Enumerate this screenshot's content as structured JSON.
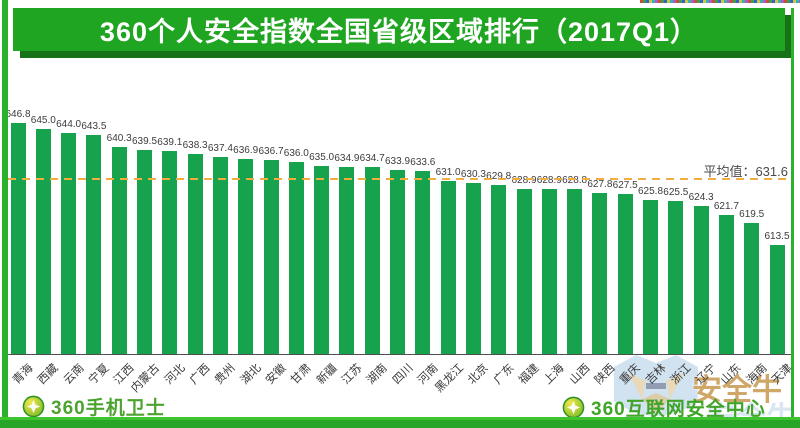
{
  "chart_data": {
    "type": "bar",
    "title": "360个人安全指数全国省级区域排行（2017Q1）",
    "categories": [
      "青海",
      "西藏",
      "云南",
      "宁夏",
      "江西",
      "内蒙古",
      "河北",
      "广西",
      "贵州",
      "湖北",
      "安徽",
      "甘肃",
      "新疆",
      "江苏",
      "湖南",
      "四川",
      "河南",
      "黑龙江",
      "北京",
      "广东",
      "福建",
      "上海",
      "山西",
      "陕西",
      "重庆",
      "吉林",
      "浙江",
      "辽宁",
      "山东",
      "海南",
      "天津"
    ],
    "values": [
      646.8,
      645.0,
      644.0,
      643.5,
      640.3,
      639.5,
      639.1,
      638.3,
      637.4,
      636.9,
      636.7,
      636.0,
      635.0,
      634.9,
      634.7,
      633.9,
      633.6,
      631.0,
      630.3,
      629.8,
      628.9,
      628.9,
      628.8,
      627.8,
      627.5,
      625.8,
      625.5,
      624.3,
      621.7,
      619.5,
      613.5
    ],
    "average_value": 631.6,
    "average_label": "平均值：631.6",
    "ylim": [
      584,
      652
    ],
    "grid": false,
    "legend": "none",
    "bar_color": "#17A24E",
    "average_line_color": "#F1AE3E",
    "xlabel": "",
    "ylabel": ""
  },
  "footer": {
    "left_brand": "360手机卫士",
    "right_brand": "360互联网安全中心"
  },
  "watermark": {
    "text": "安全牛"
  },
  "colors": {
    "banner_green": "#1FA521",
    "banner_shadow": "#167117",
    "frame_green": "#2CB12C",
    "brand_green": "#4CA32F"
  }
}
